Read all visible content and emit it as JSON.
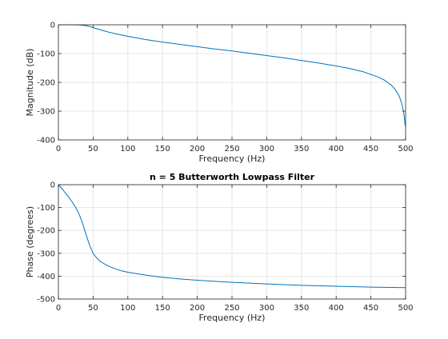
{
  "chart_data": [
    {
      "type": "line",
      "title": "",
      "xlabel": "Frequency (Hz)",
      "ylabel": "Magnitude (dB)",
      "xlim": [
        0,
        500
      ],
      "ylim": [
        -400,
        0
      ],
      "xticks": [
        0,
        50,
        100,
        150,
        200,
        250,
        300,
        350,
        400,
        450,
        500
      ],
      "yticks": [
        0,
        -100,
        -200,
        -300,
        -400
      ],
      "grid": true,
      "series": [
        {
          "color": "#0072bd",
          "x": [
            0,
            10,
            20,
            30,
            40,
            45,
            50,
            60,
            70,
            80,
            90,
            100,
            125,
            150,
            175,
            200,
            225,
            250,
            275,
            300,
            325,
            350,
            375,
            400,
            420,
            440,
            460,
            470,
            480,
            485,
            490,
            493,
            495,
            497,
            498,
            499,
            500
          ],
          "y": [
            0,
            0,
            0,
            -0.3,
            -3,
            -6,
            -10,
            -17,
            -24,
            -30,
            -35,
            -40,
            -51,
            -60,
            -68,
            -76,
            -84,
            -91,
            -99,
            -107,
            -115,
            -124,
            -133,
            -143,
            -152,
            -164,
            -181,
            -193,
            -211,
            -225,
            -244,
            -262,
            -279,
            -302,
            -318,
            -342,
            -355
          ]
        }
      ]
    },
    {
      "type": "line",
      "title": "n = 5 Butterworth Lowpass Filter",
      "xlabel": "Frequency (Hz)",
      "ylabel": "Phase (degrees)",
      "xlim": [
        0,
        500
      ],
      "ylim": [
        -500,
        0
      ],
      "xticks": [
        0,
        50,
        100,
        150,
        200,
        250,
        300,
        350,
        400,
        450,
        500
      ],
      "yticks": [
        0,
        -100,
        -200,
        -300,
        -400,
        -500
      ],
      "grid": true,
      "series": [
        {
          "color": "#0072bd",
          "x": [
            0,
            5,
            10,
            15,
            20,
            25,
            30,
            35,
            40,
            45,
            50,
            55,
            60,
            70,
            80,
            90,
            100,
            125,
            150,
            175,
            200,
            250,
            300,
            350,
            400,
            450,
            500
          ],
          "y": [
            0,
            -17,
            -36,
            -55,
            -76,
            -100,
            -130,
            -170,
            -220,
            -265,
            -300,
            -320,
            -335,
            -353,
            -366,
            -376,
            -383,
            -395,
            -405,
            -412,
            -418,
            -427,
            -434,
            -440,
            -444,
            -448,
            -450
          ]
        }
      ]
    }
  ]
}
